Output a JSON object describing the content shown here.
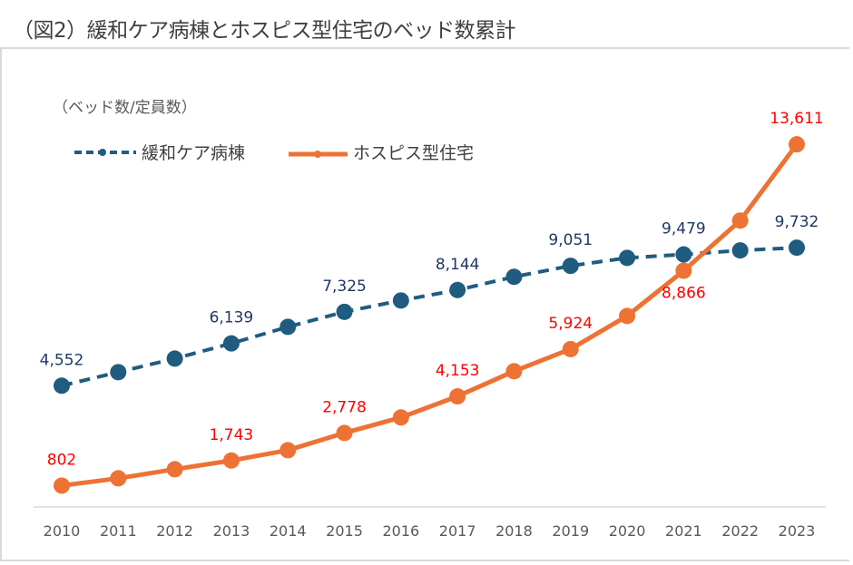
{
  "title": "（図2）緩和ケア病棟とホスピス型住宅のベッド数累計",
  "chart_data": {
    "type": "line",
    "title": "（図2）緩和ケア病棟とホスピス型住宅のベッド数累計",
    "ylabel": "（ベッド数/定員数）",
    "xlabel": "",
    "categories": [
      "2010",
      "2011",
      "2012",
      "2013",
      "2014",
      "2015",
      "2016",
      "2017",
      "2018",
      "2019",
      "2020",
      "2021",
      "2022",
      "2023"
    ],
    "ylim": [
      0,
      16000
    ],
    "grid": false,
    "legend": "top-left",
    "series": [
      {
        "name": "緩和ケア病棟",
        "color": "#1f5c7f",
        "line_style": "dashed",
        "values": [
          4552,
          5060,
          5570,
          6139,
          6760,
          7325,
          7750,
          8144,
          8640,
          9051,
          9350,
          9479,
          9630,
          9732
        ],
        "labels": {
          "0": "4,552",
          "3": "6,139",
          "5": "7,325",
          "7": "8,144",
          "9": "9,051",
          "11": "9,479",
          "13": "9,732"
        },
        "label_color": "#1f3864"
      },
      {
        "name": "ホスピス型住宅",
        "color": "#ed7233",
        "line_style": "solid",
        "values": [
          802,
          1075,
          1415,
          1743,
          2130,
          2778,
          3360,
          4153,
          5095,
          5924,
          7170,
          8866,
          10750,
          13611
        ],
        "labels": {
          "0": "802",
          "3": "1,743",
          "5": "2,778",
          "7": "4,153",
          "9": "5,924",
          "11": "8,866",
          "13": "13,611"
        },
        "label_color": "#ff0000"
      }
    ]
  }
}
